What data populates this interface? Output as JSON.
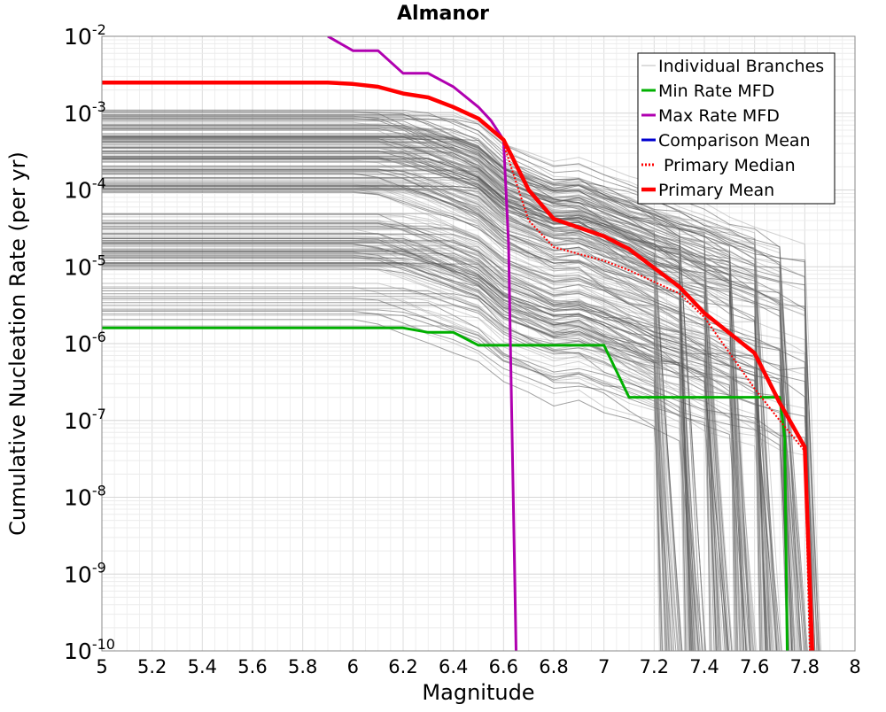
{
  "chart_data": {
    "type": "line",
    "title": "Almanor",
    "xlabel": "Magnitude",
    "ylabel": "Cumulative Nucleation Rate (per yr)",
    "x_scale": "linear",
    "y_scale": "log",
    "xlim": [
      5,
      8
    ],
    "ylim": [
      1e-10,
      0.01
    ],
    "x_ticks": [
      5,
      5.2,
      5.4,
      5.6,
      5.8,
      6,
      6.2,
      6.4,
      6.6,
      6.8,
      7,
      7.2,
      7.4,
      7.6,
      7.8,
      8
    ],
    "x_tick_labels": [
      "5",
      "5.2",
      "5.4",
      "5.6",
      "5.8",
      "6",
      "6.2",
      "6.4",
      "6.6",
      "6.8",
      "7",
      "7.2",
      "7.4",
      "7.6",
      "7.8",
      "8"
    ],
    "y_ticks": [
      {
        "base": "10",
        "exp": "-2",
        "value": 0.01
      },
      {
        "base": "10",
        "exp": "-3",
        "value": 0.001
      },
      {
        "base": "10",
        "exp": "-4",
        "value": 0.0001
      },
      {
        "base": "10",
        "exp": "-5",
        "value": 1e-05
      },
      {
        "base": "10",
        "exp": "-6",
        "value": 1e-06
      },
      {
        "base": "10",
        "exp": "-7",
        "value": 1e-07
      },
      {
        "base": "10",
        "exp": "-8",
        "value": 1e-08
      },
      {
        "base": "10",
        "exp": "-9",
        "value": 1e-09
      },
      {
        "base": "10",
        "exp": "-10",
        "value": 1e-10
      }
    ],
    "grid": true,
    "legend_position": "top-right",
    "legend": [
      {
        "name": "Individual Branches",
        "color": "#bbbbbb",
        "style": "solid"
      },
      {
        "name": "Min Rate MFD",
        "color": "#00b000",
        "style": "solid"
      },
      {
        "name": "Max Rate MFD",
        "color": "#b000b0",
        "style": "solid"
      },
      {
        "name": "Comparison Mean",
        "color": "#0000d0",
        "style": "solid"
      },
      {
        "name": " Primary Median",
        "color": "#ff0000",
        "style": "dotted"
      },
      {
        "name": "Primary Mean",
        "color": "#ff0000",
        "style": "solid"
      }
    ],
    "series": [
      {
        "name": "Min Rate MFD",
        "color": "#00b000",
        "x": [
          5,
          6.2,
          6.3,
          6.4,
          6.5,
          6.6,
          7.0,
          7.1,
          7.6,
          7.7,
          7.72,
          7.73
        ],
        "values": [
          1.6e-06,
          1.6e-06,
          1.4e-06,
          1.4e-06,
          9.5e-07,
          9.5e-07,
          9.5e-07,
          2e-07,
          2e-07,
          2e-07,
          6e-08,
          1e-10
        ]
      },
      {
        "name": "Max Rate MFD",
        "color": "#b000b0",
        "x": [
          5.9,
          6.0,
          6.1,
          6.2,
          6.3,
          6.4,
          6.5,
          6.55,
          6.6,
          6.62,
          6.65
        ],
        "values": [
          0.01,
          0.0065,
          0.0065,
          0.0033,
          0.0033,
          0.0022,
          0.0012,
          0.0008,
          0.00045,
          2e-05,
          1e-10
        ]
      },
      {
        "name": " Primary Median",
        "color": "#ff0000",
        "x": [
          6.6,
          6.7,
          6.8,
          7.0,
          7.1,
          7.3,
          7.4,
          7.6,
          7.7,
          7.8,
          7.82
        ],
        "values": [
          0.0004,
          4e-05,
          1.8e-05,
          1.2e-05,
          9e-06,
          4.5e-06,
          2.2e-06,
          2.6e-07,
          1e-07,
          4e-08,
          1e-10
        ]
      },
      {
        "name": "Primary Mean",
        "color": "#ff0000",
        "x": [
          5,
          5.9,
          6.0,
          6.1,
          6.2,
          6.3,
          6.4,
          6.5,
          6.6,
          6.7,
          6.8,
          7.0,
          7.1,
          7.3,
          7.4,
          7.6,
          7.7,
          7.8,
          7.83
        ],
        "values": [
          0.0025,
          0.0025,
          0.0024,
          0.0022,
          0.0018,
          0.0016,
          0.0012,
          0.00085,
          0.00045,
          0.0001,
          4.2e-05,
          2.5e-05,
          1.7e-05,
          5.5e-06,
          2.5e-06,
          7.5e-07,
          1.7e-07,
          4.5e-08,
          1e-10
        ]
      }
    ]
  }
}
